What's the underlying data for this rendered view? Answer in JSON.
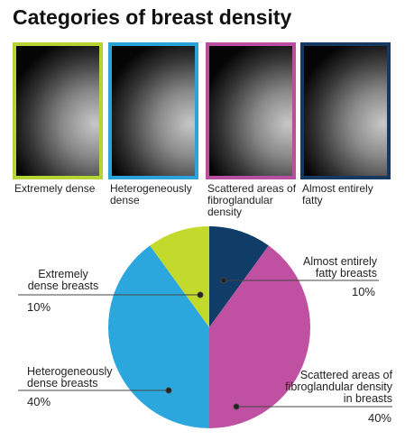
{
  "title": "Categories of breast density",
  "panels": [
    {
      "caption": "Extremely dense",
      "color": "#b6d334"
    },
    {
      "caption": "Heterogeneously dense",
      "color": "#29a3da"
    },
    {
      "caption": "Scattered areas of fibroglandular density",
      "color": "#b94fa0"
    },
    {
      "caption": "Almost entirely fatty",
      "color": "#17395f"
    }
  ],
  "chart_data": {
    "type": "pie",
    "categories": [
      "Almost entirely fatty breasts",
      "Scattered areas of fibroglandular density in breasts",
      "Heterogeneously dense breasts",
      "Extremely dense breasts"
    ],
    "values": [
      10,
      40,
      40,
      10
    ],
    "value_labels": [
      "10%",
      "40%",
      "40%",
      "10%"
    ],
    "colors": [
      "#0f3d68",
      "#c050a1",
      "#2ba7de",
      "#c3d92b"
    ]
  }
}
